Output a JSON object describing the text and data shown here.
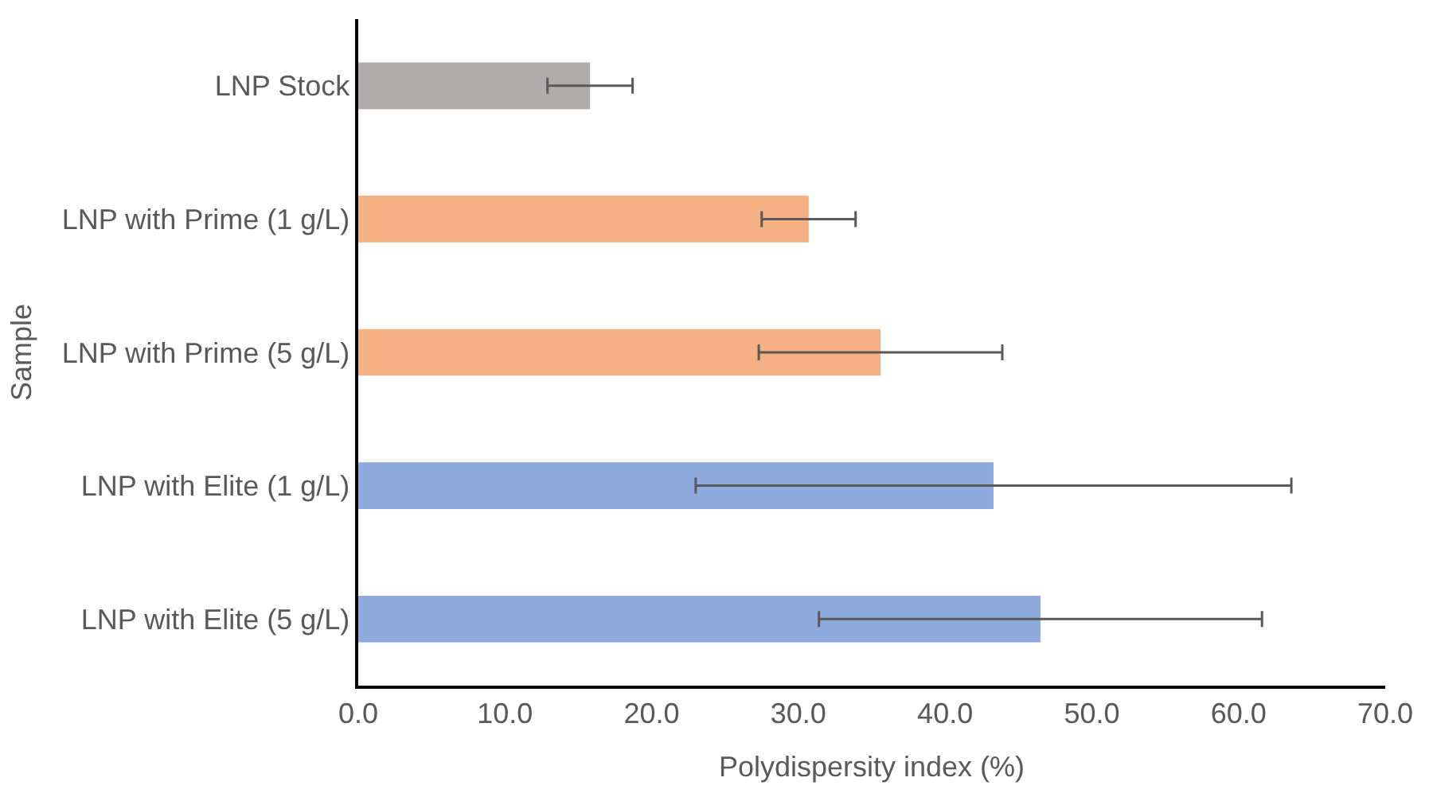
{
  "chart_data": {
    "type": "bar",
    "orientation": "horizontal",
    "xlabel": "Polydispersity index (%)",
    "ylabel": "Sample",
    "categories": [
      "LNP Stock",
      "LNP with Prime (1 g/L)",
      "LNP with Prime (5 g/L)",
      "LNP with Elite (1 g/L)",
      "LNP with Elite (5 g/L)"
    ],
    "values": [
      15.8,
      30.7,
      35.6,
      43.3,
      46.5
    ],
    "errors": [
      2.9,
      3.2,
      8.3,
      20.3,
      15.1
    ],
    "colors": [
      "#b0acab",
      "#f4b183",
      "#f4b183",
      "#8faadc",
      "#8faadc"
    ],
    "xlim": [
      0,
      70
    ],
    "xticks": [
      {
        "value": 0,
        "label": "0.0"
      },
      {
        "value": 10,
        "label": "10.0"
      },
      {
        "value": 20,
        "label": "20.0"
      },
      {
        "value": 30,
        "label": "30.0"
      },
      {
        "value": 40,
        "label": "40.0"
      },
      {
        "value": 50,
        "label": "50.0"
      },
      {
        "value": 60,
        "label": "60.0"
      },
      {
        "value": 70,
        "label": "70.0"
      }
    ],
    "grid": false
  }
}
